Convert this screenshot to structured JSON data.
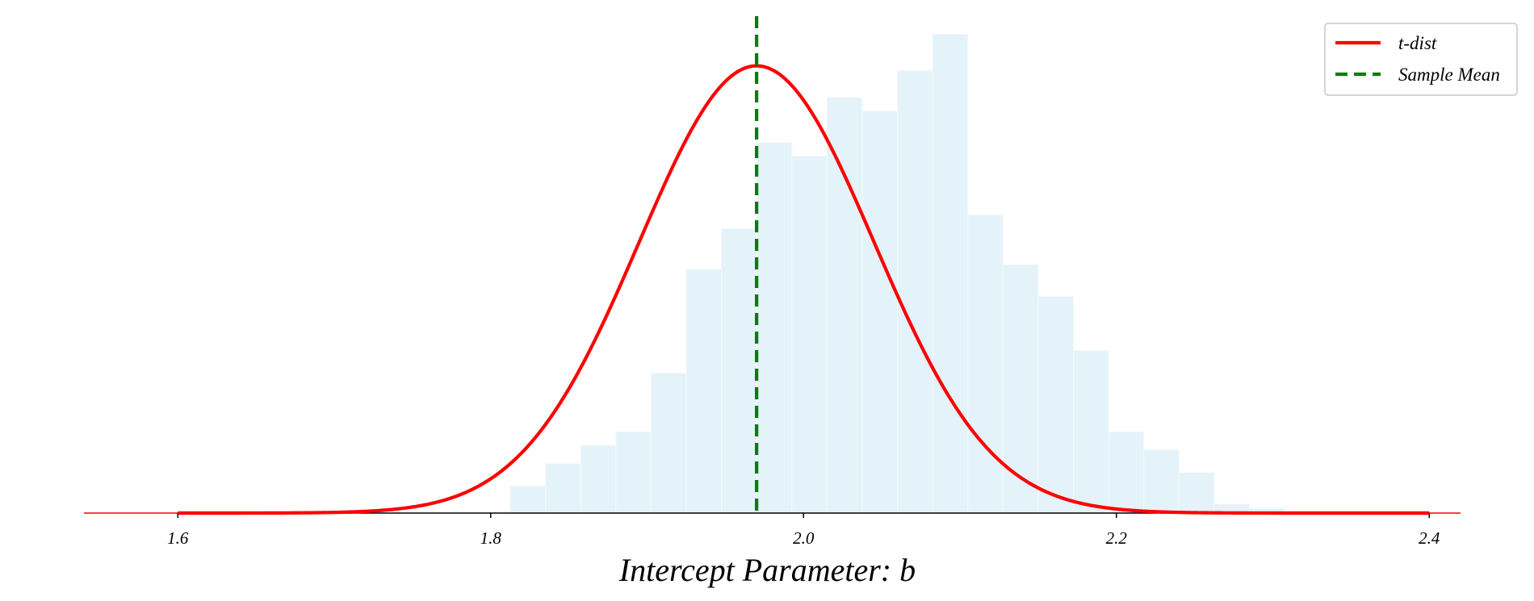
{
  "chart_data": {
    "type": "bar",
    "xlabel": "Intercept Parameter: b",
    "xlim": [
      1.54,
      2.42
    ],
    "x_ticks": [
      1.6,
      1.8,
      2.0,
      2.2,
      2.4
    ],
    "x_tick_labels": [
      "1.6",
      "1.8",
      "2.0",
      "2.2",
      "2.4"
    ],
    "y_axis_visible": false,
    "grid": false,
    "legend_position": "top-right",
    "colors": {
      "histogram": "#e4f2f9",
      "histogram_edge": "#f4fafd",
      "t_dist": "#ff0000",
      "sample_mean": "#008000",
      "axis": "#000000"
    },
    "histogram": {
      "bin_start": 1.8125,
      "bin_width": 0.0225,
      "relative_heights": [
        0.06,
        0.11,
        0.15,
        0.18,
        0.31,
        0.54,
        0.63,
        0.82,
        0.79,
        0.92,
        0.89,
        0.98,
        1.06,
        0.66,
        0.55,
        0.48,
        0.36,
        0.18,
        0.14,
        0.09,
        0.02,
        0.01
      ]
    },
    "series": [
      {
        "name": "t-dist",
        "kind": "line",
        "peak_x": 1.97,
        "scale": 0.075,
        "x_range": [
          1.6,
          2.4
        ],
        "color": "#ff0000"
      },
      {
        "name": "Sample Mean",
        "kind": "vline",
        "x": 1.97,
        "color": "#008000"
      }
    ]
  }
}
